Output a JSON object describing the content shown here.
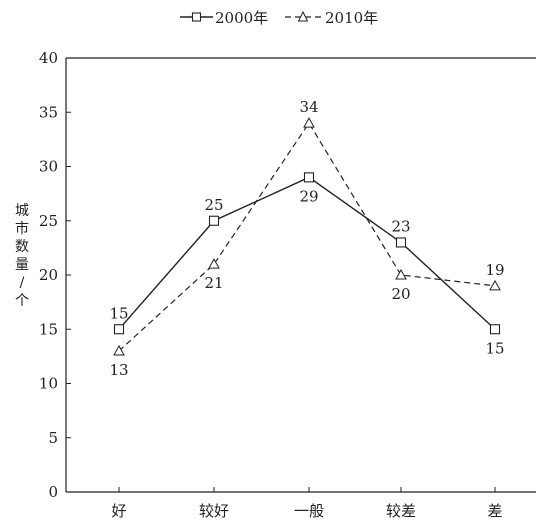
{
  "chart_data": {
    "type": "line",
    "categories": [
      "好",
      "较好",
      "一般",
      "较差",
      "差"
    ],
    "series": [
      {
        "name": "2000年",
        "values": [
          15,
          25,
          29,
          23,
          15
        ],
        "line_style": "solid",
        "marker": "square",
        "label_pos": [
          "above",
          "above",
          "below",
          "above",
          "below"
        ]
      },
      {
        "name": "2010年",
        "values": [
          13,
          21,
          34,
          20,
          19
        ],
        "line_style": "dashed",
        "marker": "triangle",
        "label_pos": [
          "below",
          "below",
          "above",
          "below",
          "above"
        ]
      }
    ],
    "ylabel": "城市数量/个",
    "yticks": [
      "0",
      "5",
      "10",
      "15",
      "20",
      "25",
      "30",
      "35",
      "40"
    ],
    "ylim": [
      0,
      40
    ],
    "legend_position": "top-center",
    "grid": false,
    "color": "#222222"
  }
}
